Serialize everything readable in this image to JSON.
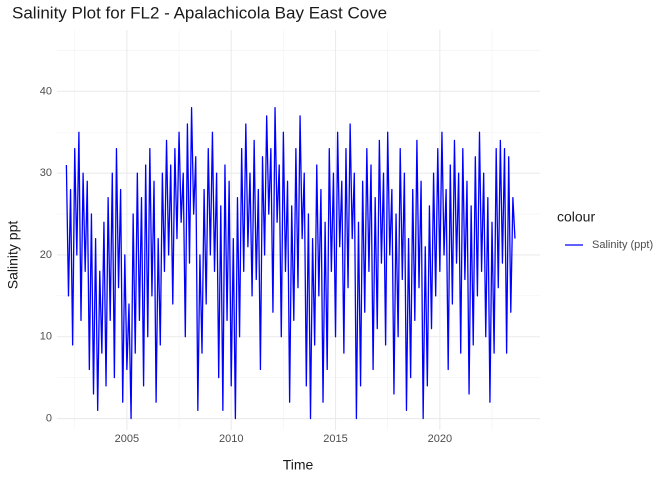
{
  "chart_data": {
    "type": "line",
    "title": "Salinity Plot for FL2 - Apalachicola Bay East Cove",
    "x_label": "Time",
    "y_label": "Salinity ppt",
    "legend_title": "colour",
    "legend_position": "right",
    "grid": true,
    "xlim": [
      2001.65,
      2024.8
    ],
    "xticks": [
      2005,
      2010,
      2015,
      2020
    ],
    "xminor": [
      2002.5,
      2007.5,
      2012.5,
      2017.5,
      2022.5
    ],
    "ylim": [
      -1.4,
      47.5
    ],
    "yticks": [
      0,
      10,
      20,
      30,
      40
    ],
    "yminor": [
      5,
      15,
      25,
      35,
      45
    ],
    "x": [
      2002.1,
      2002.2,
      2002.3,
      2002.4,
      2002.5,
      2002.6,
      2002.7,
      2002.8,
      2002.9,
      2003.0,
      2003.1,
      2003.2,
      2003.3,
      2003.4,
      2003.5,
      2003.6,
      2003.7,
      2003.8,
      2003.9,
      2004.0,
      2004.1,
      2004.2,
      2004.3,
      2004.4,
      2004.5,
      2004.6,
      2004.7,
      2004.8,
      2004.9,
      2005.0,
      2005.1,
      2005.2,
      2005.3,
      2005.4,
      2005.5,
      2005.6,
      2005.7,
      2005.8,
      2005.9,
      2006.0,
      2006.1,
      2006.2,
      2006.3,
      2006.4,
      2006.5,
      2006.6,
      2006.7,
      2006.8,
      2006.9,
      2007.0,
      2007.1,
      2007.2,
      2007.3,
      2007.4,
      2007.5,
      2007.6,
      2007.7,
      2007.8,
      2007.9,
      2008.0,
      2008.1,
      2008.2,
      2008.3,
      2008.4,
      2008.5,
      2008.6,
      2008.7,
      2008.8,
      2008.9,
      2009.0,
      2009.1,
      2009.2,
      2009.3,
      2009.4,
      2009.5,
      2009.6,
      2009.7,
      2009.8,
      2009.9,
      2010.0,
      2010.1,
      2010.2,
      2010.3,
      2010.4,
      2010.5,
      2010.6,
      2010.7,
      2010.8,
      2010.9,
      2011.0,
      2011.1,
      2011.2,
      2011.3,
      2011.4,
      2011.5,
      2011.6,
      2011.7,
      2011.8,
      2011.9,
      2012.0,
      2012.1,
      2012.2,
      2012.3,
      2012.4,
      2012.5,
      2012.6,
      2012.7,
      2012.8,
      2012.9,
      2013.0,
      2013.1,
      2013.2,
      2013.3,
      2013.4,
      2013.5,
      2013.6,
      2013.7,
      2013.8,
      2013.9,
      2014.0,
      2014.1,
      2014.2,
      2014.3,
      2014.4,
      2014.5,
      2014.6,
      2014.7,
      2014.8,
      2014.9,
      2015.0,
      2015.1,
      2015.2,
      2015.3,
      2015.4,
      2015.5,
      2015.6,
      2015.7,
      2015.8,
      2015.9,
      2016.0,
      2016.1,
      2016.2,
      2016.3,
      2016.4,
      2016.5,
      2016.6,
      2016.7,
      2016.8,
      2016.9,
      2017.0,
      2017.1,
      2017.2,
      2017.3,
      2017.4,
      2017.5,
      2017.6,
      2017.7,
      2017.8,
      2017.9,
      2018.0,
      2018.1,
      2018.2,
      2018.3,
      2018.4,
      2018.5,
      2018.6,
      2018.7,
      2018.8,
      2018.9,
      2019.0,
      2019.1,
      2019.2,
      2019.3,
      2019.4,
      2019.5,
      2019.6,
      2019.7,
      2019.8,
      2019.9,
      2020.0,
      2020.1,
      2020.2,
      2020.3,
      2020.4,
      2020.5,
      2020.6,
      2020.7,
      2020.8,
      2020.9,
      2021.0,
      2021.1,
      2021.2,
      2021.3,
      2021.4,
      2021.5,
      2021.6,
      2021.7,
      2021.8,
      2021.9,
      2022.0,
      2022.1,
      2022.2,
      2022.3,
      2022.4,
      2022.5,
      2022.6,
      2022.7,
      2022.8,
      2022.9,
      2023.0,
      2023.1,
      2023.2,
      2023.3,
      2023.4,
      2023.5,
      2023.6
    ],
    "series": [
      {
        "name": "Salinity (ppt)",
        "color": "#0000ff",
        "values": [
          31,
          15,
          28,
          9,
          33,
          20,
          35,
          12,
          30,
          18,
          29,
          6,
          25,
          3,
          22,
          1,
          18,
          8,
          24,
          4,
          27,
          12,
          30,
          5,
          33,
          16,
          28,
          2,
          20,
          6,
          14,
          0,
          25,
          8,
          30,
          12,
          27,
          4,
          31,
          10,
          33,
          15,
          29,
          2,
          22,
          9,
          30,
          18,
          34,
          20,
          31,
          14,
          33,
          22,
          35,
          24,
          30,
          10,
          36,
          19,
          38,
          25,
          32,
          1,
          20,
          8,
          28,
          14,
          33,
          20,
          35,
          18,
          30,
          5,
          26,
          1,
          31,
          12,
          29,
          4,
          22,
          0,
          27,
          10,
          33,
          18,
          36,
          21,
          30,
          15,
          34,
          17,
          28,
          6,
          32,
          20,
          37,
          25,
          33,
          13,
          38,
          24,
          31,
          10,
          35,
          18,
          29,
          2,
          26,
          12,
          33,
          16,
          37,
          22,
          30,
          4,
          25,
          0,
          22,
          9,
          31,
          15,
          28,
          2,
          24,
          6,
          33,
          18,
          30,
          10,
          35,
          21,
          29,
          8,
          33,
          16,
          36,
          22,
          30,
          0,
          24,
          4,
          29,
          13,
          33,
          18,
          31,
          6,
          27,
          11,
          34,
          19,
          30,
          9,
          35,
          20,
          28,
          3,
          25,
          10,
          33,
          17,
          30,
          1,
          22,
          5,
          28,
          12,
          34,
          16,
          29,
          0,
          21,
          4,
          26,
          11,
          30,
          15,
          33,
          18,
          35,
          20,
          28,
          6,
          31,
          14,
          34,
          19,
          30,
          8,
          33,
          17,
          29,
          3,
          26,
          9,
          32,
          15,
          35,
          18,
          30,
          10,
          27,
          2,
          24,
          8,
          33,
          16,
          34,
          19,
          33,
          8,
          32,
          13,
          27,
          22
        ]
      }
    ]
  }
}
